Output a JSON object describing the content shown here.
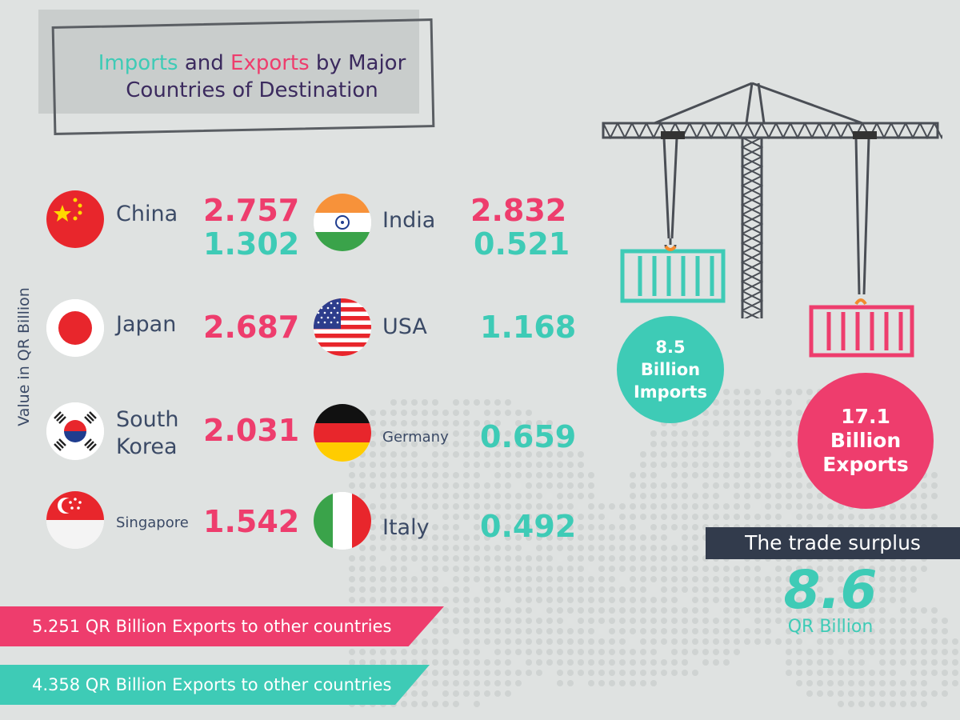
{
  "title": {
    "part_imports": "Imports",
    "part_and": " and ",
    "part_exports": "Exports",
    "part_rest1": " by Major",
    "line2": "Countries of Destination"
  },
  "chart_data": {
    "type": "table",
    "ylabel": "Value in QR Billion",
    "countries": [
      {
        "name": "China",
        "exports": 2.757,
        "imports": 1.302
      },
      {
        "name": "Japan",
        "exports": 2.687
      },
      {
        "name": "South Korea",
        "exports": 2.031
      },
      {
        "name": "Singapore",
        "exports": 1.542
      },
      {
        "name": "India",
        "exports": 2.832,
        "imports": 0.521
      },
      {
        "name": "USA",
        "imports": 1.168
      },
      {
        "name": "Germany",
        "imports": 0.659
      },
      {
        "name": "Italy",
        "imports": 0.492
      }
    ],
    "total_imports": 8.5,
    "total_exports": 17.1,
    "trade_surplus": 8.6
  },
  "labels": {
    "china": "China",
    "japan": "Japan",
    "korea_line1": "South",
    "korea_line2": "Korea",
    "singapore": "Singapore",
    "india": "India",
    "usa": "USA",
    "germany": "Germany",
    "italy": "Italy"
  },
  "values": {
    "china_pink": "2.757",
    "china_teal": "1.302",
    "japan_pink": "2.687",
    "korea_pink": "2.031",
    "singapore_pink": "1.542",
    "india_pink": "2.832",
    "india_teal": "0.521",
    "usa_teal": "1.168",
    "germany_teal": "0.659",
    "italy_teal": "0.492"
  },
  "imports_bubble": {
    "value": "8.5",
    "line2": "Billion",
    "line3": "Imports"
  },
  "exports_bubble": {
    "value": "17.1",
    "line2": "Billion",
    "line3": "Exports"
  },
  "surplus": {
    "label": "The trade surplus",
    "value": "8.6",
    "unit": "QR Billion"
  },
  "ribbons": {
    "pink": "5.251 QR Billion Exports to other countries",
    "teal": "4.358 QR Billion Exports to other countries"
  },
  "colors": {
    "pink": "#ee3d6d",
    "teal": "#3ecbb6",
    "navy": "#323b4c",
    "background": "#dfe2e1"
  }
}
